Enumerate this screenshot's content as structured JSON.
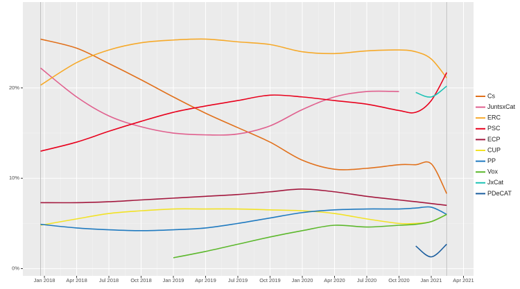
{
  "chart_data": {
    "type": "line",
    "x": [
      2017.97,
      2018.25,
      2018.5,
      2018.75,
      2019,
      2019.25,
      2019.5,
      2019.75,
      2020,
      2020.25,
      2020.5,
      2020.75,
      2020.88,
      2021,
      2021.12
    ],
    "series": [
      {
        "name": "Cs",
        "color": "#e1701b",
        "values": [
          25.4,
          24.4,
          22.7,
          20.9,
          19,
          17.2,
          15.6,
          14,
          12,
          11,
          11.1,
          11.5,
          11.5,
          11.6,
          8.3
        ]
      },
      {
        "name": "JuntsxCat",
        "color": "#e0608e",
        "values": [
          22.2,
          19,
          16.9,
          15.7,
          15,
          14.8,
          14.9,
          15.8,
          17.6,
          19,
          19.6,
          19.6,
          null,
          null,
          null
        ]
      },
      {
        "name": "ERC",
        "color": "#f6a929",
        "values": [
          20.3,
          22.8,
          24.2,
          25,
          25.3,
          25.4,
          25.1,
          24.8,
          24,
          23.8,
          24.1,
          24.2,
          24,
          23.2,
          21.1
        ]
      },
      {
        "name": "PSC",
        "color": "#e8001c",
        "values": [
          13,
          14,
          15.2,
          16.3,
          17.3,
          18,
          18.6,
          19.2,
          19,
          18.6,
          18.2,
          17.5,
          17.3,
          18.6,
          21.7
        ]
      },
      {
        "name": "ECP",
        "color": "#a3173d",
        "values": [
          7.3,
          7.3,
          7.4,
          7.6,
          7.8,
          8,
          8.2,
          8.5,
          8.8,
          8.5,
          8,
          7.6,
          7.4,
          7.2,
          7
        ]
      },
      {
        "name": "CUP",
        "color": "#f2e225",
        "values": [
          4.8,
          5.5,
          6.1,
          6.4,
          6.6,
          6.6,
          6.6,
          6.5,
          6.4,
          6.1,
          5.5,
          5,
          5,
          5.2,
          6
        ]
      },
      {
        "name": "PP",
        "color": "#1f7ac0",
        "values": [
          4.9,
          4.5,
          4.3,
          4.2,
          4.3,
          4.5,
          5,
          5.6,
          6.2,
          6.5,
          6.6,
          6.6,
          6.7,
          6.8,
          6
        ]
      },
      {
        "name": "Vox",
        "color": "#5cb82c",
        "values": [
          null,
          null,
          null,
          null,
          1.2,
          1.9,
          2.7,
          3.5,
          4.2,
          4.8,
          4.6,
          4.8,
          4.9,
          5.2,
          6
        ]
      },
      {
        "name": "JxCat",
        "color": "#1cc2b5",
        "values": [
          null,
          null,
          null,
          null,
          null,
          null,
          null,
          null,
          null,
          null,
          null,
          null,
          19.5,
          19,
          20.2
        ]
      },
      {
        "name": "PDeCAT",
        "color": "#1a5d9e",
        "values": [
          null,
          null,
          null,
          null,
          null,
          null,
          null,
          null,
          null,
          null,
          null,
          null,
          2.5,
          1.3,
          2.7
        ]
      }
    ],
    "xlim": [
      2017.833,
      2021.328
    ],
    "xticks": [
      {
        "value": 2018,
        "label": "Jan 2018"
      },
      {
        "value": 2018.25,
        "label": "Apr 2018"
      },
      {
        "value": 2018.5,
        "label": "Jul 2018"
      },
      {
        "value": 2018.75,
        "label": "Oct 2018"
      },
      {
        "value": 2019,
        "label": "Jan 2019"
      },
      {
        "value": 2019.25,
        "label": "Apr 2019"
      },
      {
        "value": 2019.5,
        "label": "Jul 2019"
      },
      {
        "value": 2019.75,
        "label": "Oct 2019"
      },
      {
        "value": 2020,
        "label": "Jan 2020"
      },
      {
        "value": 2020.25,
        "label": "Apr 2020"
      },
      {
        "value": 2020.5,
        "label": "Jul 2020"
      },
      {
        "value": 2020.75,
        "label": "Oct 2020"
      },
      {
        "value": 2021,
        "label": "Jan 2021"
      },
      {
        "value": 2021.25,
        "label": "Apr 2021"
      }
    ],
    "ylim": [
      -0.8,
      29.5
    ],
    "yticks": [
      {
        "value": 0,
        "label": "0%"
      },
      {
        "value": 10,
        "label": "10%"
      },
      {
        "value": 20,
        "label": "20%"
      }
    ],
    "elections": [
      2017.97,
      2021.12
    ],
    "grid": true
  }
}
